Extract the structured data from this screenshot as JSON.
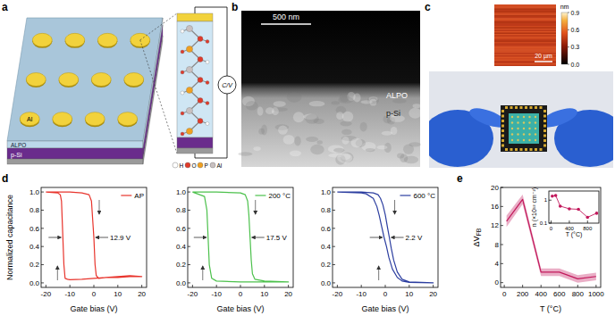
{
  "figure": {
    "panel_labels": [
      "a",
      "b",
      "c",
      "d",
      "e"
    ],
    "a": {
      "electrode": "Al",
      "dielectric": "ALPO",
      "substrate": "p-Si",
      "meter": "C/V",
      "atoms": [
        {
          "label": "H",
          "color": "#ffffff"
        },
        {
          "label": "O",
          "color": "#e03a2a"
        },
        {
          "label": "P",
          "color": "#f0a020"
        },
        {
          "label": "Al",
          "color": "#c8c0c0"
        }
      ]
    },
    "b": {
      "scale_bar": "500 nm",
      "film": "ALPO",
      "substrate": "p-Si"
    },
    "c": {
      "scale_bar": "20 µm",
      "colorbar": {
        "label": "nm",
        "range": [
          0,
          0.9
        ],
        "ticks": [
          {
            "value": 0,
            "label": "0.0"
          },
          0.3,
          0.6,
          0.9
        ]
      }
    }
  },
  "chart_data": [
    {
      "type": "line",
      "xlabel": "Gate bias (V)",
      "ylabel": "Normalized capacitance",
      "xlim": [
        -22,
        22
      ],
      "ylim": [
        -0.05,
        1.05
      ],
      "xticks": [
        -20,
        -10,
        0,
        10,
        20
      ],
      "yticks": [
        {
          "value": 0,
          "label": "0.0"
        },
        0.2,
        0.4,
        0.6,
        0.8,
        {
          "value": 1,
          "label": "1.0"
        }
      ],
      "legend": "upper right",
      "annotations": [
        {
          "text": "12.9 V"
        }
      ],
      "series": [
        {
          "name": "AP",
          "color": "#e8342c",
          "x": [
            -20,
            -15,
            -10,
            -5,
            -2,
            -1,
            0,
            0.5,
            1,
            2,
            5,
            10,
            15,
            20,
            15,
            10,
            5,
            0,
            -5,
            -10,
            -11,
            -12,
            -12.5,
            -13,
            -13.5,
            -14,
            -15,
            -20
          ],
          "values": [
            1.0,
            1.0,
            1.0,
            0.99,
            0.97,
            0.9,
            0.5,
            0.2,
            0.08,
            0.05,
            0.06,
            0.07,
            0.08,
            0.07,
            0.07,
            0.06,
            0.06,
            0.05,
            0.04,
            0.035,
            0.04,
            0.05,
            0.2,
            0.55,
            0.9,
            0.97,
            0.99,
            1.0
          ]
        }
      ]
    },
    {
      "type": "line",
      "xlabel": "Gate bias (V)",
      "xlim": [
        -22,
        22
      ],
      "ylim": [
        -0.05,
        1.05
      ],
      "xticks": [
        -20,
        -10,
        0,
        10,
        20
      ],
      "yticks": [
        {
          "value": 0,
          "label": "0.0"
        },
        0.2,
        0.4,
        0.6,
        0.8,
        {
          "value": 1,
          "label": "1.0"
        }
      ],
      "legend": "upper right",
      "annotations": [
        {
          "text": "17.5 V"
        }
      ],
      "series": [
        {
          "name": "200 °C",
          "color": "#4cc14c",
          "x": [
            -20,
            -10,
            0,
            2,
            3,
            3.5,
            4,
            4.5,
            5,
            6,
            10,
            20,
            10,
            0,
            -10,
            -12,
            -13,
            -13.5,
            -14,
            -15,
            -20
          ],
          "values": [
            1.0,
            1.0,
            0.99,
            0.97,
            0.9,
            0.75,
            0.5,
            0.25,
            0.1,
            0.04,
            0.02,
            0.01,
            0.01,
            0.01,
            0.02,
            0.05,
            0.2,
            0.5,
            0.8,
            0.95,
            1.0
          ]
        }
      ]
    },
    {
      "type": "line",
      "xlabel": "Gate bias (V)",
      "xlim": [
        -22,
        22
      ],
      "ylim": [
        -0.05,
        1.05
      ],
      "xticks": [
        -20,
        -10,
        0,
        10,
        20
      ],
      "yticks": [
        {
          "value": 0,
          "label": "0.0"
        },
        0.2,
        0.4,
        0.6,
        0.8,
        {
          "value": 1,
          "label": "1.0"
        }
      ],
      "legend": "upper right",
      "annotations": [
        {
          "text": "2.2 V"
        }
      ],
      "series": [
        {
          "name": "600 °C",
          "color": "#2c3ea0",
          "x": [
            -20,
            -10,
            -5,
            -3,
            -2,
            -1,
            0,
            1,
            1.7,
            2.5,
            3.5,
            5,
            7,
            10,
            20,
            10,
            7,
            5,
            3,
            1.5,
            0.5,
            -0.5,
            -1.5,
            -2.5,
            -3.5,
            -5,
            -8,
            -10,
            -20
          ],
          "values": [
            1,
            1,
            0.99,
            0.97,
            0.93,
            0.86,
            0.75,
            0.6,
            0.5,
            0.38,
            0.25,
            0.12,
            0.04,
            0.01,
            0,
            0.005,
            0.02,
            0.06,
            0.15,
            0.28,
            0.4,
            0.5,
            0.62,
            0.74,
            0.84,
            0.93,
            0.98,
            0.99,
            1
          ]
        }
      ]
    },
    {
      "type": "line",
      "xlabel": "T (°C)",
      "ylabel": "ΔVFB",
      "xlim": [
        -40,
        1050
      ],
      "ylim": [
        -1,
        20
      ],
      "xticks": [
        0,
        200,
        400,
        600,
        800,
        1000
      ],
      "yticks": [
        0,
        4,
        8,
        12,
        16,
        20
      ],
      "series": [
        {
          "color": "#c2185b",
          "x": [
            25,
            200,
            400,
            600,
            800,
            1000
          ],
          "values": [
            12.9,
            17.5,
            2.2,
            2.2,
            0.8,
            1.3
          ],
          "errors": [
            1.2,
            1.0,
            0.8,
            0.8,
            0.8,
            0.8
          ]
        }
      ]
    },
    {
      "type": "line",
      "xlabel": "T (°C)",
      "ylabel": "n (×10¹² cm⁻²)",
      "log": "y",
      "marker": "circle",
      "xlim": [
        -50,
        1050
      ],
      "ylim": [
        0.1,
        2.5
      ],
      "xticks": [
        0,
        400,
        800
      ],
      "yticks": [
        0.1,
        1
      ],
      "series": [
        {
          "color": "#c2185b",
          "x": [
            25,
            100,
            200,
            400,
            600,
            800,
            1000
          ],
          "values": [
            1.5,
            1.6,
            0.55,
            0.42,
            0.4,
            0.18,
            0.27
          ]
        }
      ]
    }
  ]
}
